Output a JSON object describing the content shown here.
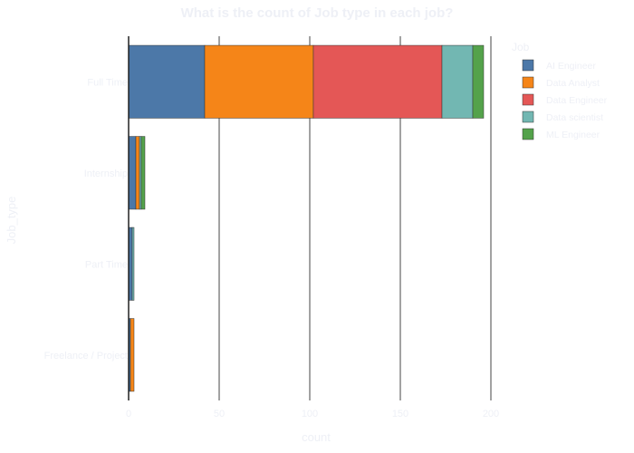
{
  "chart_data": {
    "type": "bar",
    "orientation": "horizontal",
    "barmode": "stack",
    "title": "What is the count of Job type in each job?",
    "xlabel": "count",
    "ylabel": "Job_type",
    "xlim": [
      0,
      200
    ],
    "xticks": [
      0,
      50,
      100,
      150,
      200
    ],
    "grid": true,
    "legend_title": "Job",
    "legend_position": "right",
    "categories": [
      "Full Time",
      "Internship",
      "Part Time",
      "Freelance / Project"
    ],
    "series": [
      {
        "name": "AI Engineer",
        "color": "#4c78a8",
        "values": [
          42,
          4,
          2,
          1
        ]
      },
      {
        "name": "Data Analyst",
        "color": "#f58518",
        "values": [
          60,
          2,
          0,
          2
        ]
      },
      {
        "name": "Data Engineer",
        "color": "#e45756",
        "values": [
          71,
          0,
          0,
          0
        ]
      },
      {
        "name": "Data scientist",
        "color": "#72b7b2",
        "values": [
          17,
          1,
          1,
          0
        ]
      },
      {
        "name": "ML Engineer",
        "color": "#54a24b",
        "values": [
          6,
          2,
          0,
          0
        ]
      }
    ]
  }
}
